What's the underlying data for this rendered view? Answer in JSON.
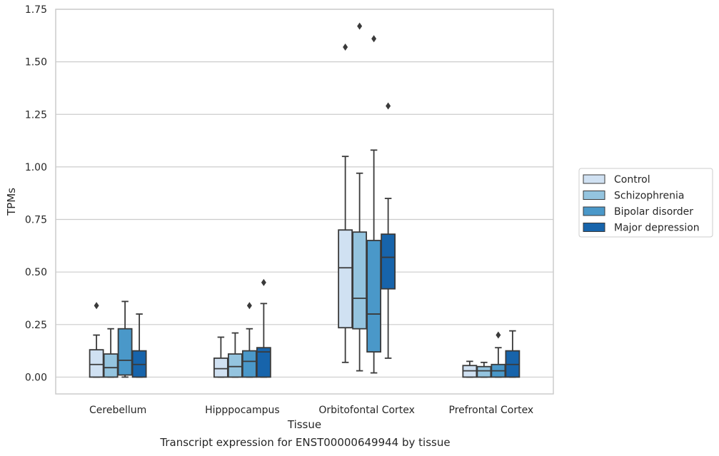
{
  "caption": "Transcript expression for ENST00000649944 by tissue",
  "colors": {
    "series": [
      "#d0e1f2",
      "#94c4df",
      "#4a98c9",
      "#1764ab"
    ],
    "grid": "#cccccc",
    "box_edge": "#3a3a3a",
    "background": "#ffffff"
  },
  "chart_data": {
    "type": "box",
    "title": "",
    "xlabel": "Tissue",
    "ylabel": "TPMs",
    "ylim": [
      -0.08,
      1.75
    ],
    "yticks": [
      0.0,
      0.25,
      0.5,
      0.75,
      1.0,
      1.25,
      1.5,
      1.75
    ],
    "ytick_labels": [
      "0.00",
      "0.25",
      "0.50",
      "0.75",
      "1.00",
      "1.25",
      "1.50",
      "1.75"
    ],
    "grid": true,
    "legend_position": "right",
    "categories": [
      "Cerebellum",
      "Hipppocampus",
      "Orbitofontal Cortex",
      "Prefrontal Cortex"
    ],
    "series": [
      {
        "name": "Control",
        "boxes": [
          {
            "whisker_low": 0.0,
            "q1": 0.0,
            "median": 0.06,
            "q3": 0.13,
            "whisker_high": 0.2,
            "outliers": [
              0.34
            ]
          },
          {
            "whisker_low": 0.0,
            "q1": 0.0,
            "median": 0.04,
            "q3": 0.09,
            "whisker_high": 0.19,
            "outliers": []
          },
          {
            "whisker_low": 0.07,
            "q1": 0.235,
            "median": 0.52,
            "q3": 0.7,
            "whisker_high": 1.05,
            "outliers": [
              1.57
            ]
          },
          {
            "whisker_low": 0.0,
            "q1": 0.0,
            "median": 0.03,
            "q3": 0.055,
            "whisker_high": 0.075,
            "outliers": []
          }
        ]
      },
      {
        "name": "Schizophrenia",
        "boxes": [
          {
            "whisker_low": 0.0,
            "q1": 0.0,
            "median": 0.045,
            "q3": 0.11,
            "whisker_high": 0.23,
            "outliers": []
          },
          {
            "whisker_low": 0.0,
            "q1": 0.0,
            "median": 0.05,
            "q3": 0.11,
            "whisker_high": 0.21,
            "outliers": []
          },
          {
            "whisker_low": 0.03,
            "q1": 0.23,
            "median": 0.375,
            "q3": 0.69,
            "whisker_high": 0.97,
            "outliers": [
              1.67
            ]
          },
          {
            "whisker_low": 0.0,
            "q1": 0.0,
            "median": 0.03,
            "q3": 0.05,
            "whisker_high": 0.07,
            "outliers": []
          }
        ]
      },
      {
        "name": "Bipolar disorder",
        "boxes": [
          {
            "whisker_low": 0.0,
            "q1": 0.01,
            "median": 0.08,
            "q3": 0.23,
            "whisker_high": 0.36,
            "outliers": []
          },
          {
            "whisker_low": 0.0,
            "q1": 0.0,
            "median": 0.075,
            "q3": 0.125,
            "whisker_high": 0.23,
            "outliers": [
              0.34
            ]
          },
          {
            "whisker_low": 0.02,
            "q1": 0.12,
            "median": 0.3,
            "q3": 0.65,
            "whisker_high": 1.08,
            "outliers": [
              1.61
            ]
          },
          {
            "whisker_low": 0.0,
            "q1": 0.0,
            "median": 0.03,
            "q3": 0.06,
            "whisker_high": 0.14,
            "outliers": [
              0.2
            ]
          }
        ]
      },
      {
        "name": "Major depression",
        "boxes": [
          {
            "whisker_low": 0.0,
            "q1": 0.0,
            "median": 0.06,
            "q3": 0.125,
            "whisker_high": 0.3,
            "outliers": []
          },
          {
            "whisker_low": 0.0,
            "q1": 0.0,
            "median": 0.12,
            "q3": 0.14,
            "whisker_high": 0.35,
            "outliers": [
              0.45
            ]
          },
          {
            "whisker_low": 0.09,
            "q1": 0.42,
            "median": 0.57,
            "q3": 0.68,
            "whisker_high": 0.85,
            "outliers": [
              1.29
            ]
          },
          {
            "whisker_low": 0.0,
            "q1": 0.0,
            "median": 0.06,
            "q3": 0.125,
            "whisker_high": 0.22,
            "outliers": []
          }
        ]
      }
    ]
  }
}
